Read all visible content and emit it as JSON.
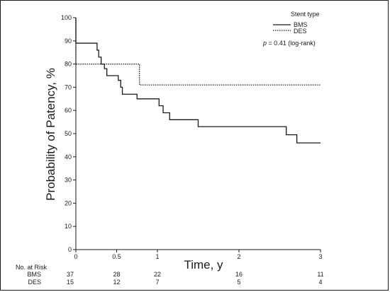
{
  "chart_data": {
    "type": "line",
    "subtype": "step",
    "xlabel": "Time, y",
    "ylabel": "Probability of Patency, %",
    "xlim": [
      0,
      3
    ],
    "ylim": [
      0,
      100
    ],
    "x_ticks": [
      0,
      0.5,
      1,
      2,
      3
    ],
    "x_tick_labels": [
      "0",
      "0.5",
      "1",
      "2",
      "3"
    ],
    "y_ticks": [
      0,
      10,
      20,
      30,
      40,
      50,
      60,
      70,
      80,
      90,
      100
    ],
    "y_tick_labels": [
      "0",
      "10",
      "20",
      "30",
      "40",
      "50",
      "60",
      "70",
      "80",
      "90",
      "100"
    ],
    "grid": false,
    "legend": {
      "title": "Stent type",
      "placement": "top-right",
      "entries": [
        {
          "label": "BMS",
          "style": "solid"
        },
        {
          "label": "DES",
          "style": "dotted"
        }
      ]
    },
    "annotation": {
      "italic": "p",
      "text": " = 0.41 (log-rank)"
    },
    "series": [
      {
        "name": "BMS",
        "style": "solid",
        "x": [
          0,
          0.0,
          0.26,
          0.28,
          0.31,
          0.35,
          0.38,
          0.52,
          0.55,
          0.57,
          0.75,
          1.02,
          1.07,
          1.15,
          1.5,
          2.58,
          2.71,
          3.0
        ],
        "y": [
          100,
          89,
          86,
          83,
          80,
          78,
          75,
          73,
          70,
          67,
          65,
          62,
          59,
          56,
          53,
          49.5,
          46,
          46
        ]
      },
      {
        "name": "DES",
        "style": "dotted",
        "x": [
          0,
          0.0,
          0.78,
          3.0
        ],
        "y": [
          100,
          80,
          71,
          71
        ]
      }
    ],
    "risk_table": {
      "title": "No. at Risk",
      "times": [
        0,
        0.5,
        1,
        2,
        3
      ],
      "rows": [
        {
          "label": "BMS",
          "values": [
            "37",
            "28",
            "22",
            "16",
            "11"
          ]
        },
        {
          "label": "DES",
          "values": [
            "15",
            "12",
            "7",
            "5",
            "4"
          ]
        }
      ]
    }
  }
}
